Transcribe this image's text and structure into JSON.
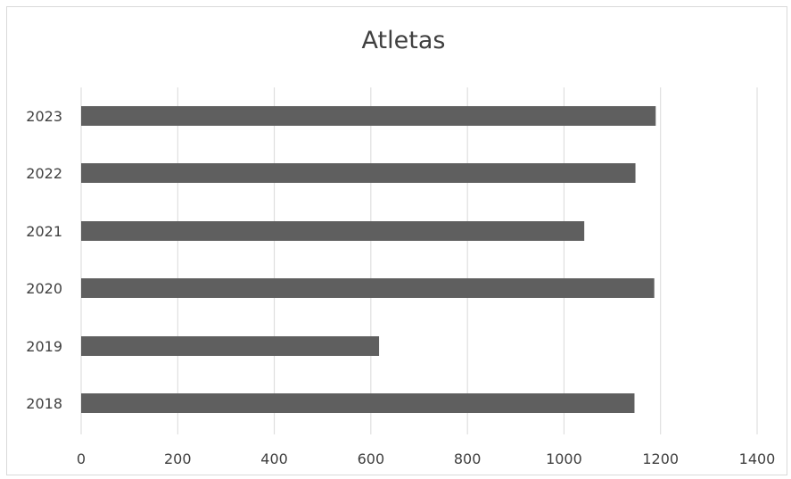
{
  "chart_data": {
    "type": "bar",
    "orientation": "horizontal",
    "title": "Atletas",
    "categories": [
      "2023",
      "2022",
      "2021",
      "2020",
      "2019",
      "2018"
    ],
    "values": [
      1190,
      1148,
      1042,
      1187,
      617,
      1146
    ],
    "xlim": [
      0,
      1400
    ],
    "xticks": [
      "0",
      "200",
      "400",
      "600",
      "800",
      "1000",
      "1200",
      "1400"
    ],
    "grid": "vertical",
    "legend": "none",
    "colors": {
      "bar": "#5f5f5f",
      "grid": "#d9d9d9",
      "text": "#404040"
    }
  }
}
